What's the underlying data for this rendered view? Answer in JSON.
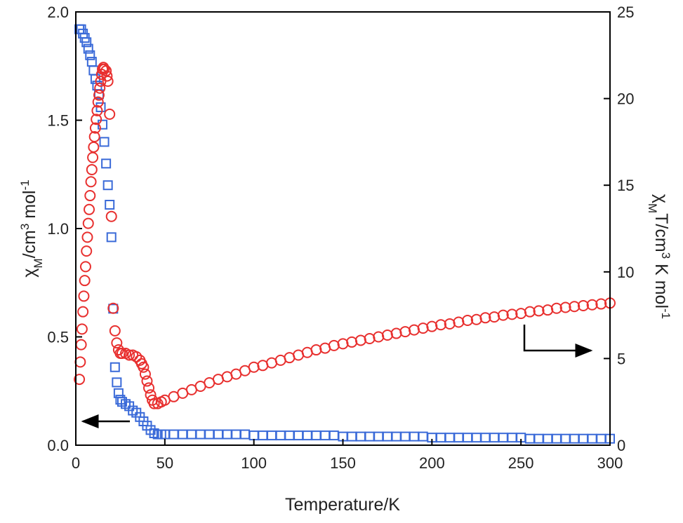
{
  "chart_data": {
    "type": "scatter",
    "xlabel": "Temperature/K",
    "ylabel_parts": [
      "χ",
      "M",
      "/cm",
      "3",
      " mol",
      "-1"
    ],
    "y2label_parts": [
      "χ",
      "M",
      "T/cm",
      "3",
      " K mol",
      "-1"
    ],
    "xlim": [
      0,
      300
    ],
    "xticks": [
      0,
      50,
      100,
      150,
      200,
      250,
      300
    ],
    "ylim": [
      0,
      2
    ],
    "yticks": [
      {
        "value": 0,
        "label": "0.0"
      },
      0.5,
      {
        "value": 1,
        "label": "1.0"
      },
      1.5,
      {
        "value": 2,
        "label": "2.0"
      }
    ],
    "y2lim": [
      0,
      25
    ],
    "y2ticks": [
      0,
      5,
      10,
      15,
      20,
      25
    ],
    "series": [
      {
        "color": "#3a6ad8",
        "marker": "square",
        "axis": "y",
        "x": [
          2,
          3,
          4,
          5,
          6,
          7,
          8,
          9,
          10,
          11,
          12,
          13,
          14,
          15,
          16,
          17,
          18,
          19,
          20,
          21,
          22,
          23,
          24,
          25,
          26,
          28,
          30,
          32,
          34,
          36,
          38,
          40,
          42,
          44,
          46,
          48,
          50,
          55,
          60,
          65,
          70,
          75,
          80,
          85,
          90,
          95,
          100,
          105,
          110,
          115,
          120,
          125,
          130,
          135,
          140,
          145,
          150,
          155,
          160,
          165,
          170,
          175,
          180,
          185,
          190,
          195,
          200,
          205,
          210,
          215,
          220,
          225,
          230,
          235,
          240,
          245,
          250,
          255,
          260,
          265,
          270,
          275,
          280,
          285,
          290,
          295,
          300
        ],
        "values": [
          1.92,
          1.92,
          1.9,
          1.88,
          1.86,
          1.83,
          1.8,
          1.77,
          1.73,
          1.69,
          1.66,
          1.62,
          1.56,
          1.48,
          1.4,
          1.3,
          1.2,
          1.11,
          0.96,
          0.63,
          0.36,
          0.29,
          0.24,
          0.21,
          0.2,
          0.19,
          0.18,
          0.16,
          0.15,
          0.13,
          0.11,
          0.09,
          0.07,
          0.055,
          0.05,
          0.05,
          0.05,
          0.05,
          0.05,
          0.05,
          0.05,
          0.05,
          0.05,
          0.05,
          0.05,
          0.05,
          0.045,
          0.045,
          0.045,
          0.045,
          0.045,
          0.045,
          0.045,
          0.045,
          0.045,
          0.045,
          0.04,
          0.04,
          0.04,
          0.04,
          0.04,
          0.04,
          0.04,
          0.04,
          0.04,
          0.04,
          0.035,
          0.035,
          0.035,
          0.035,
          0.035,
          0.035,
          0.035,
          0.035,
          0.035,
          0.035,
          0.035,
          0.03,
          0.03,
          0.03,
          0.03,
          0.03,
          0.03,
          0.03,
          0.03,
          0.03,
          0.03
        ]
      },
      {
        "color": "#e8302f",
        "marker": "circle",
        "axis": "y2",
        "x": [
          2,
          2.5,
          3,
          3.5,
          4,
          4.5,
          5,
          5.5,
          6,
          6.5,
          7,
          7.5,
          8,
          8.5,
          9,
          9.5,
          10,
          10.5,
          11,
          11.5,
          12,
          12.5,
          13,
          13.5,
          14,
          14.5,
          15,
          15.5,
          16,
          17,
          17.5,
          18,
          19,
          20,
          21,
          22,
          23,
          24,
          25,
          26,
          28,
          30,
          32,
          34,
          36,
          37,
          38,
          39,
          40,
          41,
          42,
          43,
          44,
          46,
          48,
          50,
          55,
          60,
          65,
          70,
          75,
          80,
          85,
          90,
          95,
          100,
          105,
          110,
          115,
          120,
          125,
          130,
          135,
          140,
          145,
          150,
          155,
          160,
          165,
          170,
          175,
          180,
          185,
          190,
          195,
          200,
          205,
          210,
          215,
          220,
          225,
          230,
          235,
          240,
          245,
          250,
          255,
          260,
          265,
          270,
          275,
          280,
          285,
          290,
          295,
          300
        ],
        "values": [
          3.8,
          4.8,
          5.8,
          6.7,
          7.7,
          8.6,
          9.5,
          10.3,
          11.2,
          12.0,
          12.8,
          13.6,
          14.4,
          15.2,
          15.9,
          16.6,
          17.2,
          17.8,
          18.3,
          18.8,
          19.3,
          19.8,
          20.2,
          20.6,
          21.0,
          21.4,
          21.7,
          21.8,
          21.7,
          21.6,
          21.3,
          21.0,
          19.1,
          13.2,
          7.9,
          6.6,
          5.9,
          5.5,
          5.3,
          5.3,
          5.3,
          5.2,
          5.2,
          5.1,
          4.9,
          4.7,
          4.5,
          4.1,
          3.7,
          3.3,
          2.9,
          2.6,
          2.4,
          2.4,
          2.5,
          2.6,
          2.8,
          3.0,
          3.2,
          3.4,
          3.6,
          3.8,
          3.95,
          4.1,
          4.3,
          4.5,
          4.6,
          4.75,
          4.9,
          5.05,
          5.2,
          5.35,
          5.5,
          5.6,
          5.75,
          5.85,
          5.95,
          6.05,
          6.15,
          6.25,
          6.35,
          6.45,
          6.55,
          6.65,
          6.75,
          6.85,
          6.95,
          7.0,
          7.1,
          7.2,
          7.25,
          7.35,
          7.4,
          7.5,
          7.55,
          7.6,
          7.7,
          7.75,
          7.8,
          7.9,
          7.95,
          8.0,
          8.05,
          8.1,
          8.15,
          8.2
        ]
      }
    ]
  }
}
